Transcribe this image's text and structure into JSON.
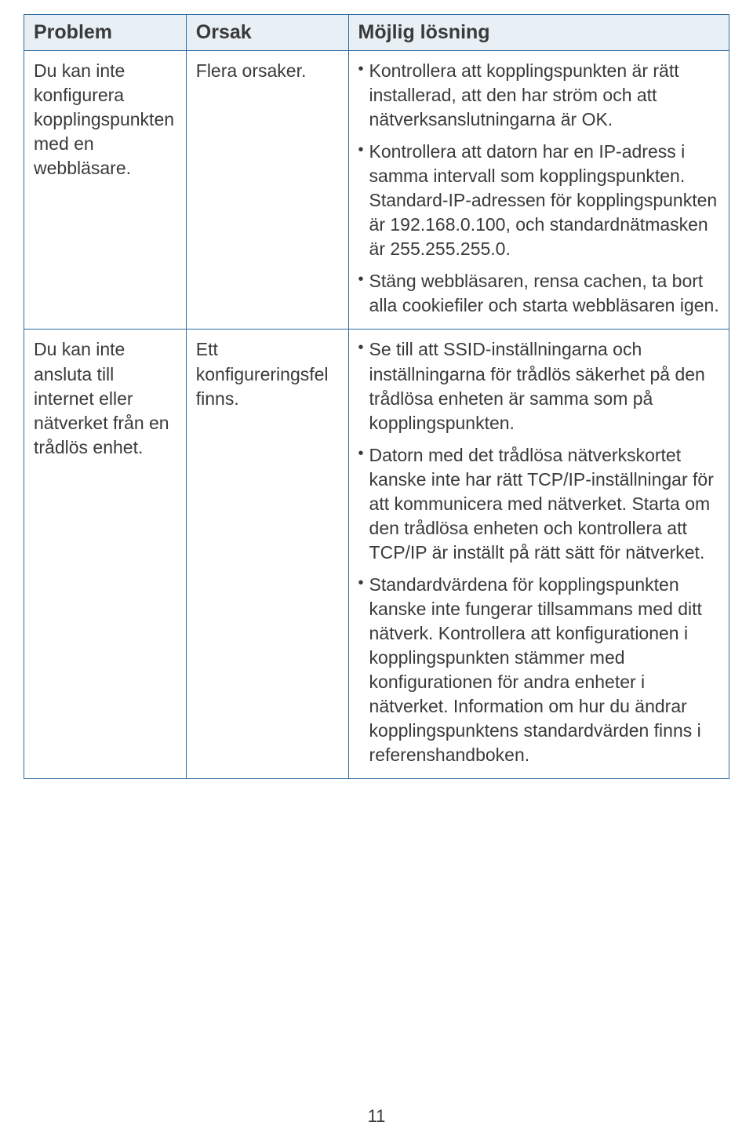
{
  "table": {
    "headers": {
      "problem": "Problem",
      "cause": "Orsak",
      "solution": "Möjlig lösning"
    },
    "row1": {
      "problem": "Du kan inte konfigurera kopplingspunkten med en webbläsare.",
      "cause": "Flera orsaker.",
      "b1": "Kontrollera att kopplingspunkten är rätt installerad, att den har ström och att nätverksanslutningarna är OK.",
      "b2": "Kontrollera att datorn har en IP-adress i samma intervall som kopplingspunkten. Standard-IP-adressen för kopplingspunkten är 192.168.0.100, och standardnätmasken är 255.255.255.0.",
      "b3": "Stäng webbläsaren, rensa cachen, ta bort alla cookiefiler och starta webbläsaren igen."
    },
    "row2": {
      "problem": "Du kan inte ansluta till internet eller nätverket från en trådlös enhet.",
      "cause": "Ett konfigureringsfel finns.",
      "b1": "Se till att SSID-inställningarna och inställningarna för trådlös säkerhet på den trådlösa enheten är samma som på kopplingspunkten.",
      "b2": "Datorn med det trådlösa nätverkskortet kanske inte har rätt TCP/IP-inställningar för att kommunicera med nätverket. Starta om den trådlösa enheten och kontrollera att TCP/IP är inställt på rätt sätt för nätverket.",
      "b3": "Standardvärdena för kopplingspunkten kanske inte fungerar tillsammans med ditt nätverk. Kontrollera att konfigurationen i kopplingspunkten stämmer med konfigurationen för andra enheter i nätverket. Information om hur du ändrar kopplingspunktens standardvärden finns i referenshandboken."
    }
  },
  "page_number": "11"
}
